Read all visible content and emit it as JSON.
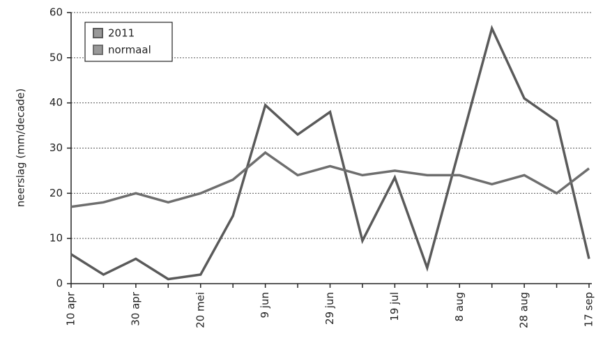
{
  "chart_data": {
    "type": "line",
    "y_label": "neerslag (mm/decade)",
    "categories": [
      "10 apr",
      null,
      "30 apr",
      null,
      "20 mei",
      null,
      "9 jun",
      null,
      "29 jun",
      null,
      "19 jul",
      null,
      "8 aug",
      null,
      "28 aug",
      null,
      "17 sep"
    ],
    "series": [
      {
        "name": "2011",
        "color": "#5a5a5a",
        "values": [
          6.5,
          2,
          5.5,
          1,
          2,
          15,
          39.5,
          33,
          38,
          9.5,
          23.5,
          3.5,
          30,
          56.5,
          41,
          36,
          5.5
        ]
      },
      {
        "name": "normaal",
        "color": "#6e6e6e",
        "values": [
          17,
          18,
          20,
          18,
          20,
          23,
          29,
          24,
          26,
          24,
          25,
          24,
          24,
          22,
          24,
          20,
          25.5
        ]
      }
    ],
    "ylim": [
      0,
      60
    ],
    "yticks": [
      0,
      10,
      20,
      30,
      40,
      50,
      60
    ],
    "grid": true,
    "legend": "top-left"
  }
}
